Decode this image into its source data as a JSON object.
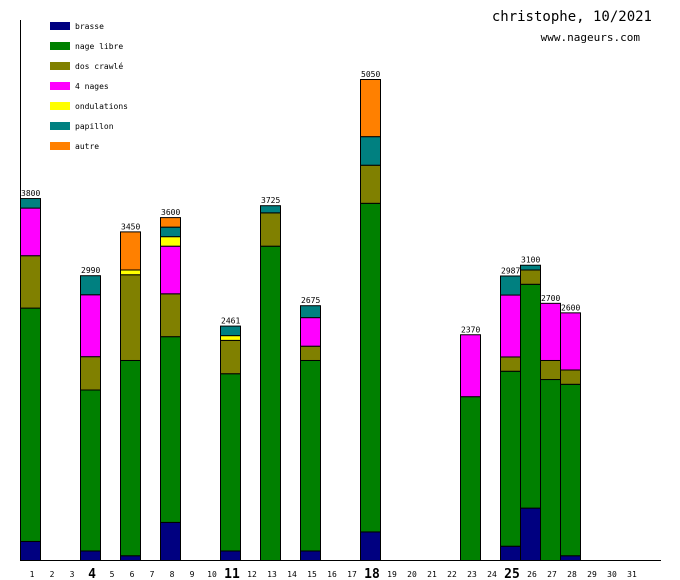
{
  "header": {
    "title": "christophe, 10/2021",
    "site": "www.nageurs.com"
  },
  "chart_data": {
    "type": "bar",
    "stacked": true,
    "title": "christophe, 10/2021",
    "subtitle": "www.nageurs.com",
    "xlabel": "",
    "ylabel": "",
    "ylim": [
      0,
      5500
    ],
    "grid": false,
    "legend_position": "top-left",
    "categories": [
      "1",
      "2",
      "3",
      "4",
      "5",
      "6",
      "7",
      "8",
      "9",
      "10",
      "11",
      "12",
      "13",
      "14",
      "15",
      "16",
      "17",
      "18",
      "19",
      "20",
      "21",
      "22",
      "23",
      "24",
      "25",
      "26",
      "27",
      "28",
      "29",
      "30",
      "31"
    ],
    "bold_categories": [
      "4",
      "11",
      "18",
      "25"
    ],
    "totals": [
      3800,
      0,
      0,
      2990,
      0,
      3450,
      0,
      3600,
      0,
      0,
      2461,
      0,
      3725,
      0,
      2675,
      0,
      0,
      5050,
      0,
      0,
      0,
      0,
      2370,
      0,
      2987,
      3100,
      2700,
      2600,
      0,
      0,
      0
    ],
    "total_labels": [
      "3800",
      "",
      "",
      "2990",
      "",
      "3450",
      "",
      "3600",
      "",
      "",
      "2461",
      "",
      "3725",
      "",
      "2675",
      "",
      "",
      "5050",
      "",
      "",
      "",
      "",
      "2370",
      "",
      "2987",
      "3100",
      "2700",
      "2600",
      "",
      "",
      ""
    ],
    "series": [
      {
        "name": "brasse",
        "color": "#000080",
        "values": [
          200,
          0,
          0,
          100,
          0,
          50,
          0,
          400,
          0,
          0,
          100,
          0,
          0,
          0,
          100,
          0,
          0,
          300,
          0,
          0,
          0,
          0,
          0,
          0,
          150,
          550,
          0,
          50,
          0,
          0,
          0
        ]
      },
      {
        "name": "nage libre",
        "color": "#008000",
        "values": [
          2450,
          0,
          0,
          1690,
          0,
          2050,
          0,
          1950,
          0,
          0,
          1861,
          0,
          3300,
          0,
          2000,
          0,
          0,
          3450,
          0,
          0,
          0,
          0,
          1720,
          0,
          1837,
          2350,
          1900,
          1800,
          0,
          0,
          0
        ]
      },
      {
        "name": "dos crawlé",
        "color": "#808000",
        "values": [
          550,
          0,
          0,
          350,
          0,
          900,
          0,
          450,
          0,
          0,
          350,
          0,
          350,
          0,
          150,
          0,
          0,
          400,
          0,
          0,
          0,
          0,
          0,
          0,
          150,
          150,
          200,
          150,
          0,
          0,
          0
        ]
      },
      {
        "name": "4 nages",
        "color": "#ff00ff",
        "values": [
          500,
          0,
          0,
          650,
          0,
          0,
          0,
          500,
          0,
          0,
          0,
          0,
          0,
          0,
          300,
          0,
          0,
          0,
          0,
          0,
          0,
          0,
          650,
          0,
          650,
          0,
          600,
          600,
          0,
          0,
          0
        ]
      },
      {
        "name": "ondulations",
        "color": "#ffff00",
        "values": [
          0,
          0,
          0,
          0,
          0,
          50,
          0,
          100,
          0,
          0,
          50,
          0,
          0,
          0,
          0,
          0,
          0,
          0,
          0,
          0,
          0,
          0,
          0,
          0,
          0,
          0,
          0,
          0,
          0,
          0,
          0
        ]
      },
      {
        "name": "papillon",
        "color": "#008080",
        "values": [
          100,
          0,
          0,
          200,
          0,
          0,
          0,
          100,
          0,
          0,
          100,
          0,
          75,
          0,
          125,
          0,
          0,
          300,
          0,
          0,
          0,
          0,
          0,
          0,
          200,
          50,
          0,
          0,
          0,
          0,
          0
        ]
      },
      {
        "name": "autre",
        "color": "#ff8000",
        "values": [
          0,
          0,
          0,
          0,
          0,
          400,
          0,
          100,
          0,
          0,
          0,
          0,
          0,
          0,
          0,
          0,
          0,
          600,
          0,
          0,
          0,
          0,
          0,
          0,
          0,
          0,
          0,
          0,
          0,
          0,
          0
        ]
      }
    ]
  }
}
